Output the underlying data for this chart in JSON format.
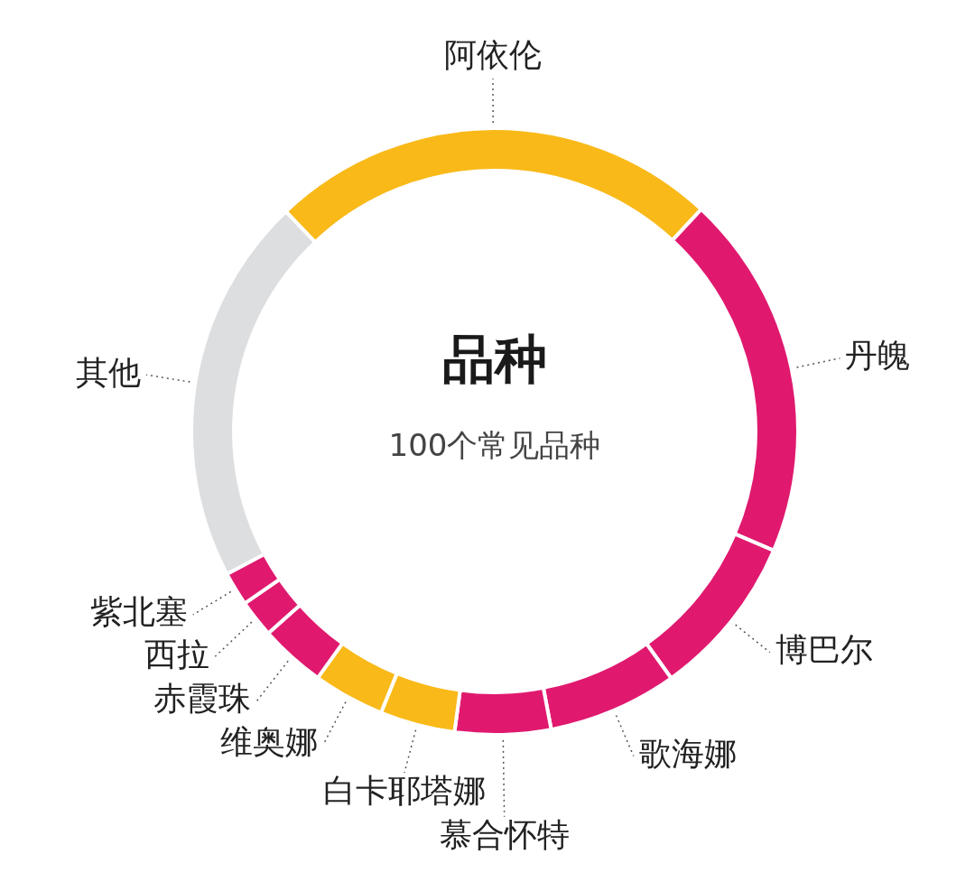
{
  "chart_data": {
    "type": "donut",
    "title": "品种",
    "subtitle": "100个常见品种",
    "categories": [
      "阿依伦",
      "丹魄",
      "博巴尔",
      "歌海娜",
      "慕合怀特",
      "白卡耶塔娜",
      "维奥娜",
      "赤霞珠",
      "西拉",
      "紫北塞",
      "其他"
    ],
    "values": [
      24,
      19.5,
      8.7,
      6.9,
      5.1,
      4,
      3.8,
      3.5,
      2,
      1.8,
      20.7
    ],
    "colors": [
      "#f9b918",
      "#e0196f",
      "#e0196f",
      "#e0196f",
      "#e0196f",
      "#f9b918",
      "#f9b918",
      "#e0196f",
      "#e0196f",
      "#e0196f",
      "#dcdee0"
    ],
    "legend": false
  }
}
